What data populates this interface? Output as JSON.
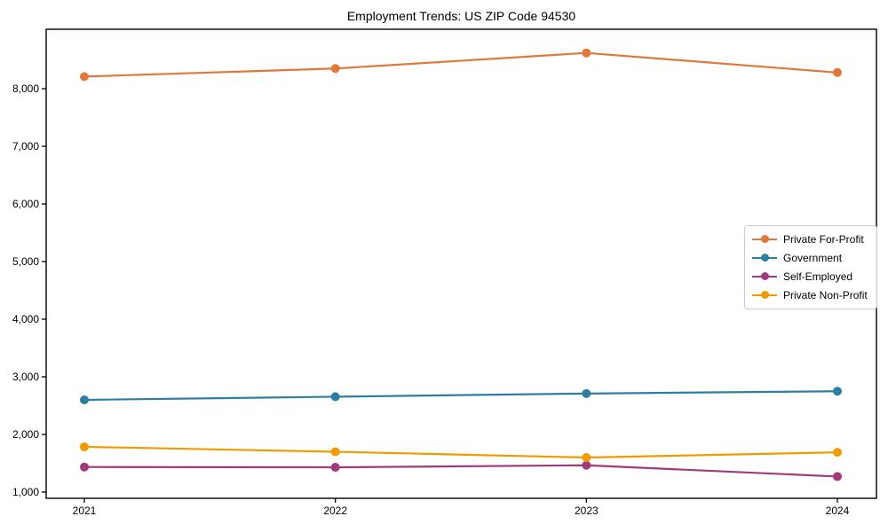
{
  "chart_data": {
    "type": "line",
    "title": "Employment Trends: US ZIP Code 94530",
    "categories": [
      "2021",
      "2022",
      "2023",
      "2024"
    ],
    "series": [
      {
        "name": "Private For-Profit",
        "color": "#e2773b",
        "values": [
          8210,
          8350,
          8620,
          8280
        ]
      },
      {
        "name": "Government",
        "color": "#2e7ea1",
        "values": [
          2600,
          2655,
          2710,
          2750
        ]
      },
      {
        "name": "Self-Employed",
        "color": "#a13a7a",
        "values": [
          1435,
          1430,
          1465,
          1270
        ]
      },
      {
        "name": "Private Non-Profit",
        "color": "#f09b00",
        "values": [
          1785,
          1700,
          1600,
          1690
        ]
      }
    ],
    "xlabel": "",
    "ylabel": "",
    "ylim": [
      892,
      9031
    ],
    "yticks": {
      "values": [
        1000,
        2000,
        3000,
        4000,
        5000,
        6000,
        7000,
        8000
      ],
      "labels": [
        "1,000",
        "2,000",
        "3,000",
        "4,000",
        "5,000",
        "6,000",
        "7,000",
        "8,000"
      ]
    },
    "grid": false,
    "legend_position": "center-right",
    "marker": "circle",
    "axis_color": "#000000",
    "tick_label_color": "#000000",
    "background": "#ffffff"
  }
}
